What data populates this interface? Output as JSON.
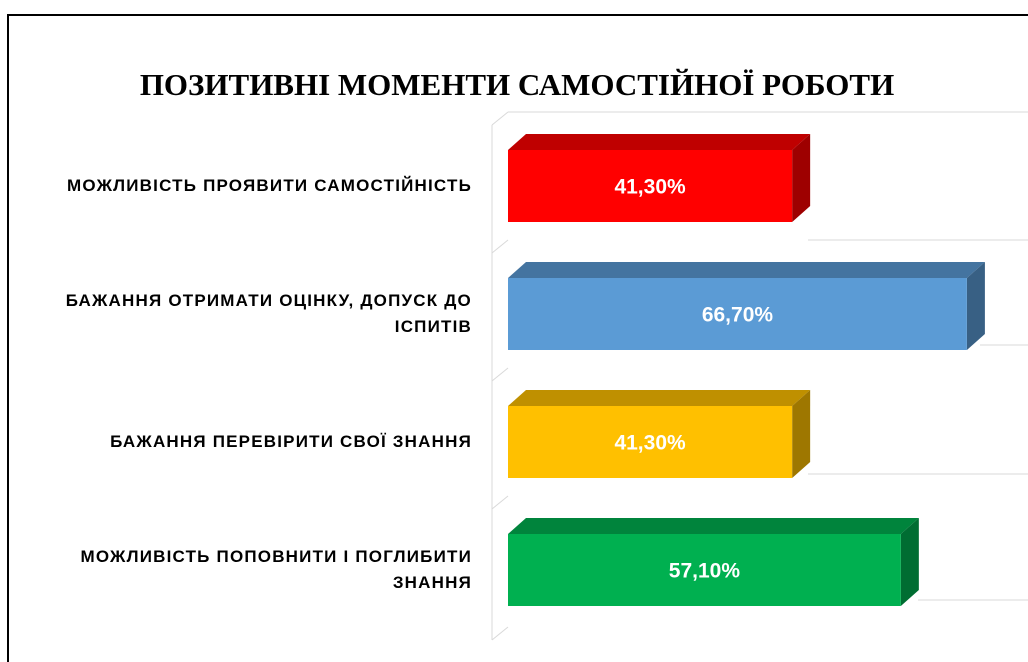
{
  "chart_data": {
    "type": "bar3d",
    "title": "ПОЗИТИВНІ МОМЕНТИ САМОСТІЙНОЇ РОБОТИ",
    "categories": [
      "МОЖЛИВІСТЬ ПРОЯВИТИ САМОСТІЙНІСТЬ",
      "БАЖАННЯ ОТРИМАТИ ОЦІНКУ, ДОПУСК ДО ІСПИТІВ",
      "БАЖАННЯ ПЕРЕВІРИТИ СВОЇ ЗНАННЯ",
      "МОЖЛИВІСТЬ ПОПОВНИТИ І ПОГЛИБИТИ ЗНАННЯ"
    ],
    "values": [
      41.3,
      66.7,
      41.3,
      57.1
    ],
    "value_labels": [
      "41,30%",
      "66,70%",
      "41,30%",
      "57,10%"
    ],
    "colors": [
      "#ff0000",
      "#5b9bd5",
      "#ffc000",
      "#00b050"
    ]
  }
}
